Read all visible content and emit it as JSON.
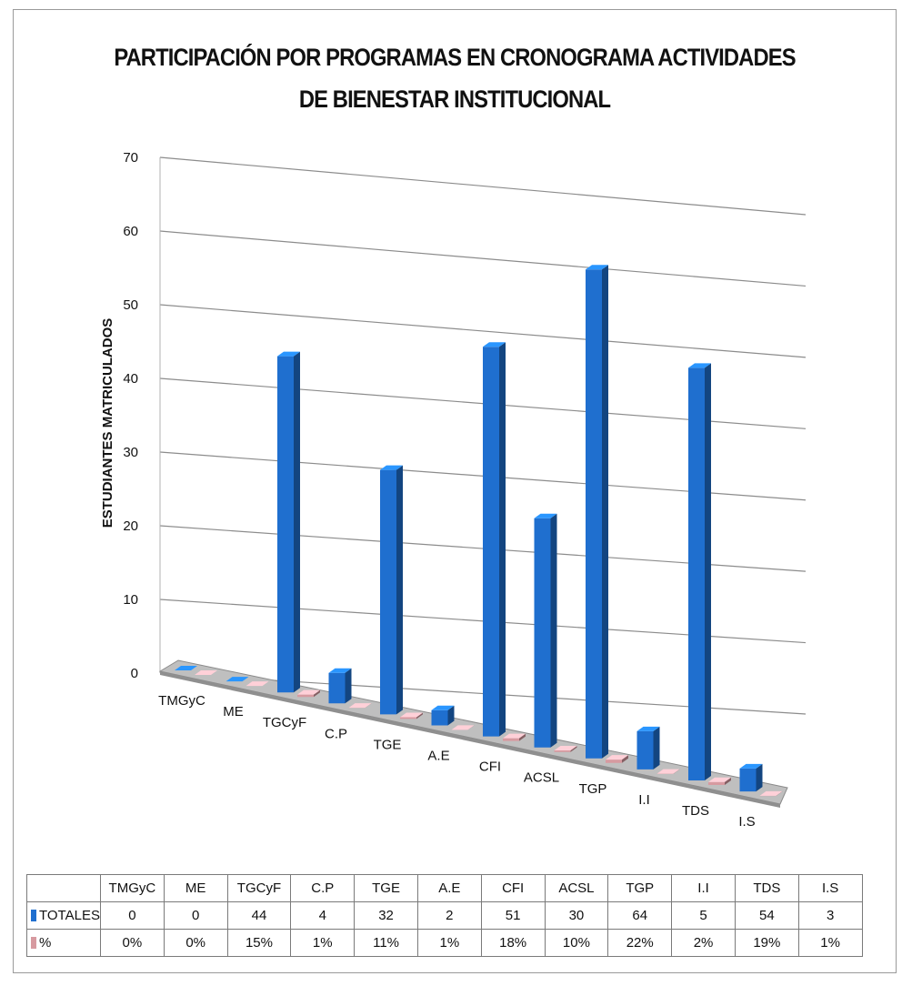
{
  "chart_data": {
    "type": "bar",
    "title": "PARTICIPACIÓN POR PROGRAMAS EN CRONOGRAMA  ACTIVIDADES DE BIENESTAR INSTITUCIONAL",
    "title_lines": [
      "PARTICIPACIÓN POR PROGRAMAS EN CRONOGRAMA  ACTIVIDADES",
      "DE BIENESTAR INSTITUCIONAL"
    ],
    "ylabel": "ESTUDIANTES MATRICULADOS",
    "xlabel": "",
    "ylim": [
      0,
      70
    ],
    "yticks": [
      0,
      10,
      20,
      30,
      40,
      50,
      60,
      70
    ],
    "grid": true,
    "style": "3d-column",
    "categories": [
      "TMGyC",
      "ME",
      "TGCyF",
      "C.P",
      "TGE",
      "A.E",
      "CFI",
      "ACSL",
      "TGP",
      "I.I",
      "TDS",
      "I.S"
    ],
    "series": [
      {
        "name": "TOTALES",
        "color": "#1f6fcf",
        "values": [
          0,
          0,
          44,
          4,
          32,
          2,
          51,
          30,
          64,
          5,
          54,
          3
        ]
      },
      {
        "name": "%",
        "color": "#d79aa0",
        "values": [
          0,
          0,
          15,
          1,
          11,
          1,
          18,
          10,
          22,
          2,
          19,
          1
        ],
        "labels": [
          "0%",
          "0%",
          "15%",
          "1%",
          "11%",
          "1%",
          "18%",
          "10%",
          "22%",
          "2%",
          "19%",
          "1%"
        ]
      }
    ],
    "data_table": true
  }
}
